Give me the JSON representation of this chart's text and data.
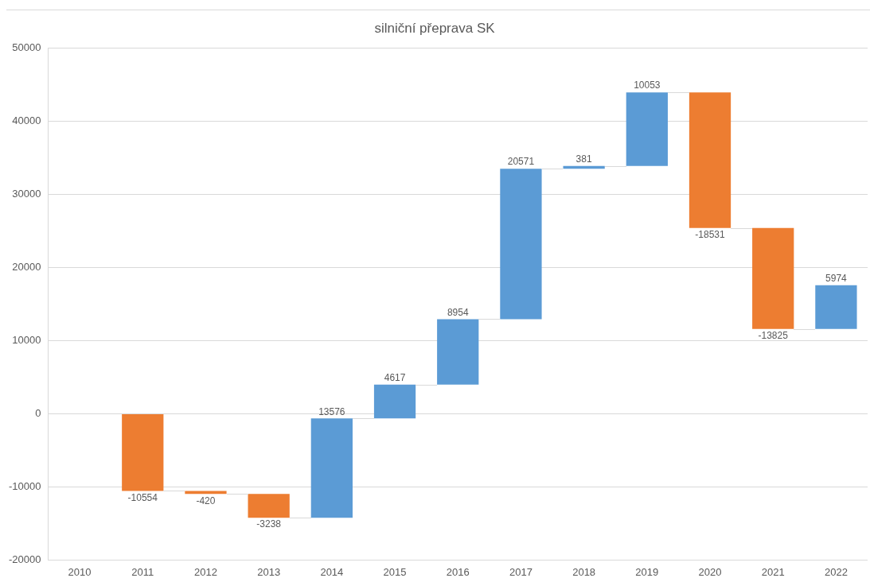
{
  "chart_data": {
    "type": "bar",
    "title": "silniční přeprava SK",
    "categories": [
      "2010",
      "2011",
      "2012",
      "2013",
      "2014",
      "2015",
      "2016",
      "2017",
      "2018",
      "2019",
      "2020",
      "2021",
      "2022"
    ],
    "values": [
      null,
      -10554,
      -420,
      -3238,
      13576,
      4617,
      8954,
      20571,
      381,
      10053,
      -18531,
      -13825,
      5974
    ],
    "base": [
      null,
      0,
      -10554,
      -10974,
      -14212,
      -636,
      3981,
      12935,
      33506,
      33887,
      43940,
      25409,
      11584
    ],
    "colors": [
      null,
      "#ed7d31",
      "#ed7d31",
      "#ed7d31",
      "#5b9bd5",
      "#5b9bd5",
      "#5b9bd5",
      "#5b9bd5",
      "#5b9bd5",
      "#5b9bd5",
      "#ed7d31",
      "#ed7d31",
      "#5b9bd5"
    ],
    "ylim": [
      -20000,
      50000
    ],
    "yticks": [
      -20000,
      -10000,
      0,
      10000,
      20000,
      30000,
      40000,
      50000
    ],
    "grid": "y",
    "data_labels": true
  }
}
